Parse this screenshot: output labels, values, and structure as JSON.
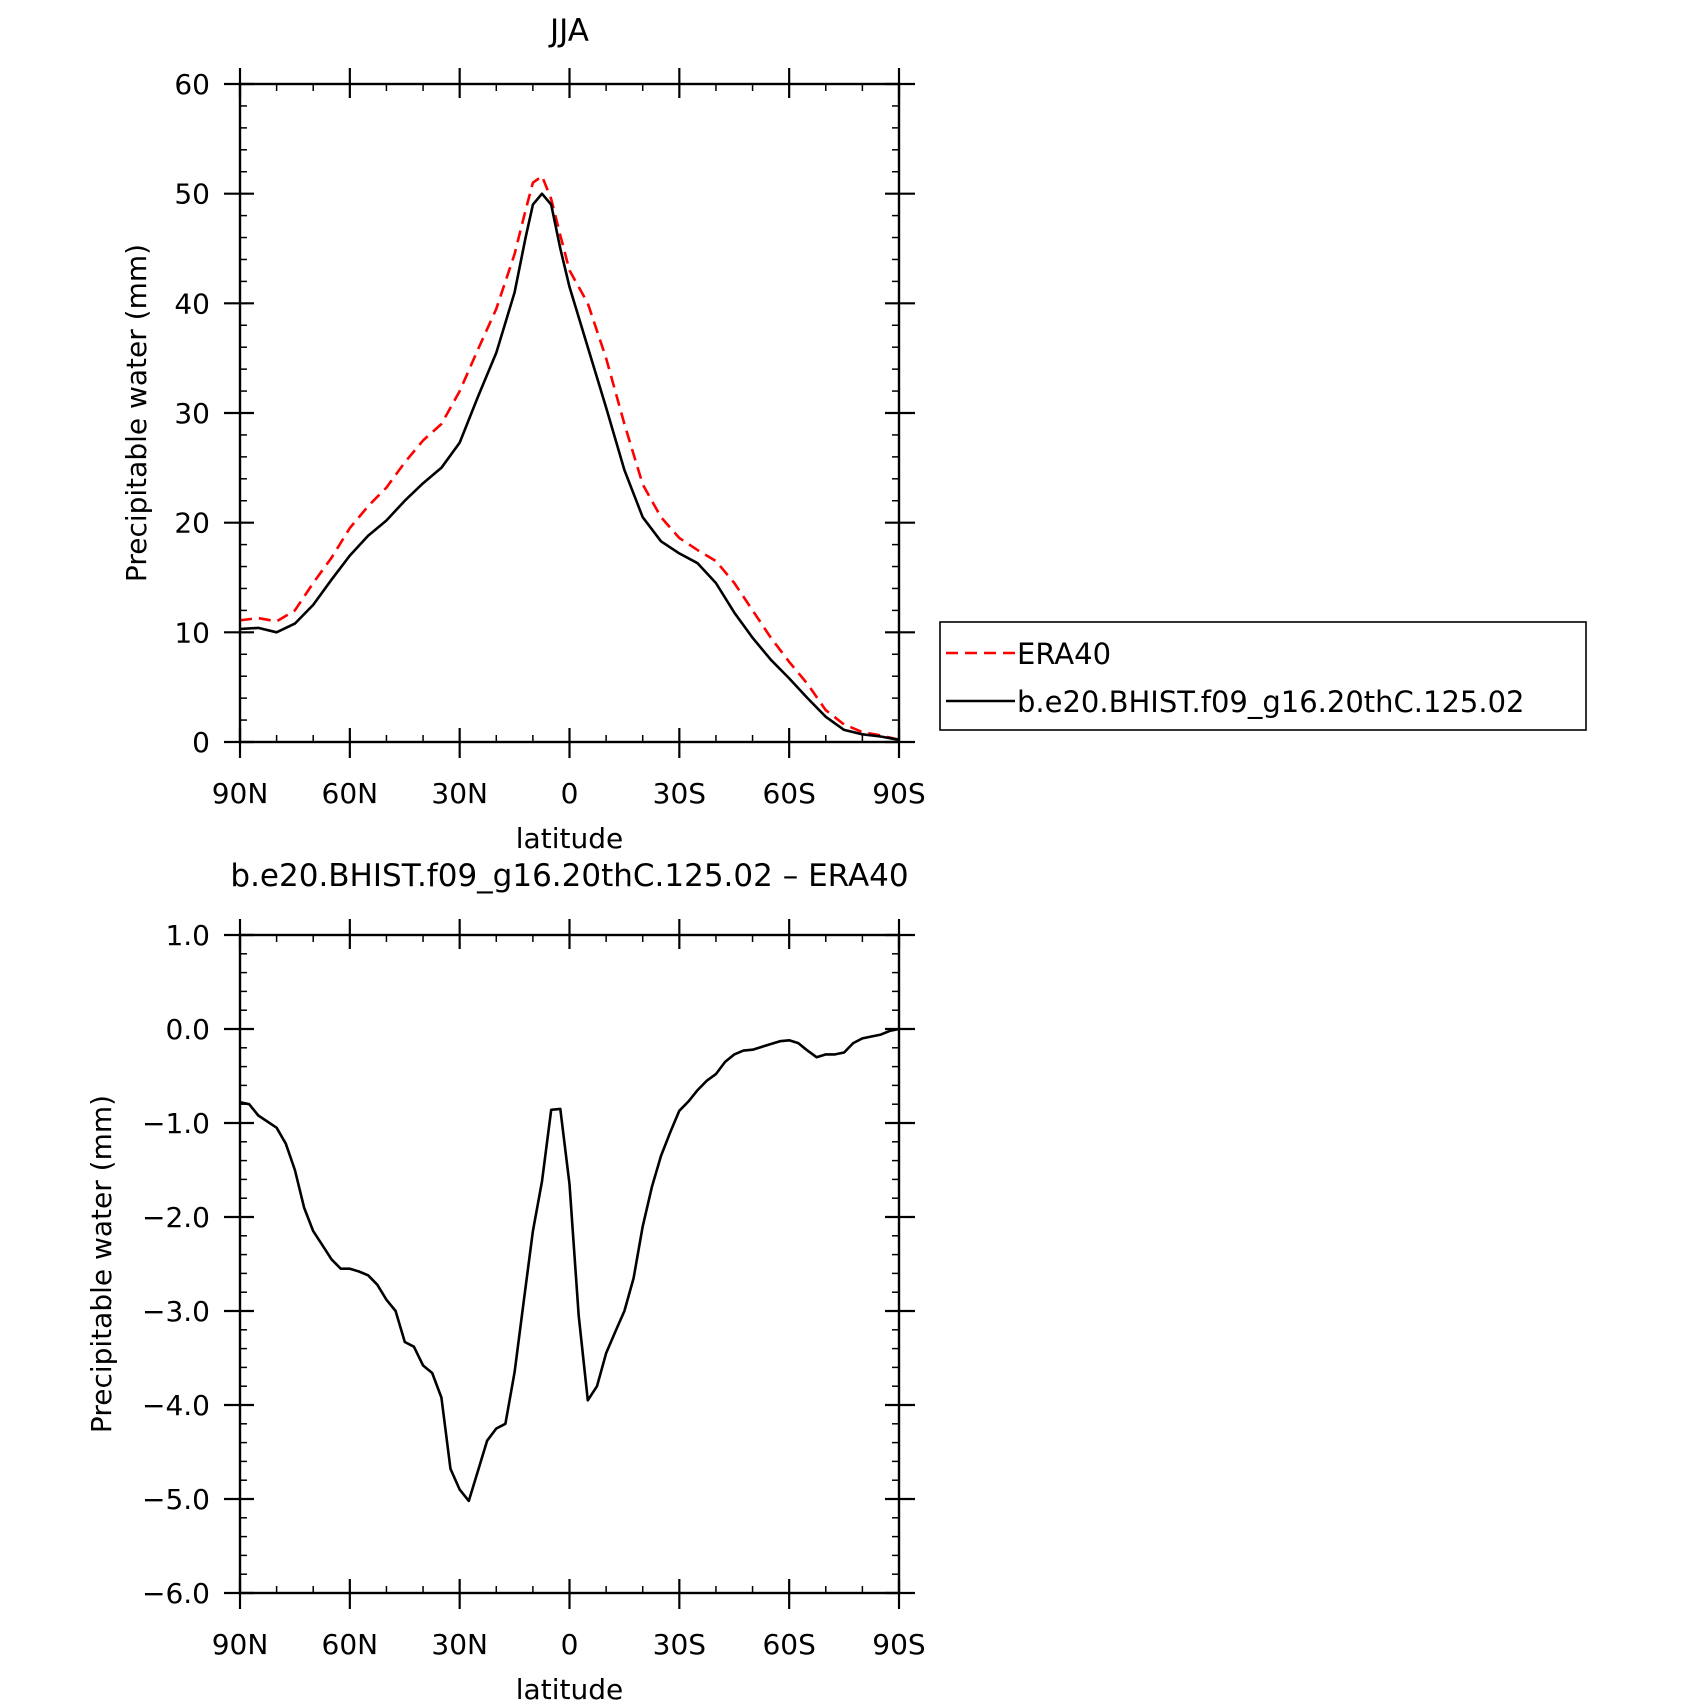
{
  "chart_data": [
    {
      "type": "line",
      "title": "JJA",
      "xlabel": "latitude",
      "ylabel": "Precipitable water (mm)",
      "xlim": [
        90,
        -90
      ],
      "ylim": [
        0,
        60
      ],
      "x_ticks": [
        90,
        60,
        30,
        0,
        -30,
        -60,
        -90
      ],
      "x_tick_labels": [
        "90N",
        "60N",
        "30N",
        "0",
        "30S",
        "60S",
        "90S"
      ],
      "y_ticks": [
        0,
        10,
        20,
        30,
        40,
        50,
        60
      ],
      "y_tick_labels": [
        "0",
        "10",
        "20",
        "30",
        "40",
        "50",
        "60"
      ],
      "grid": false,
      "legend": "right",
      "series": [
        {
          "name": "ERA40",
          "color": "#ff0000",
          "style": "dashed",
          "x": [
            90,
            85,
            80,
            75,
            70,
            65,
            60,
            55,
            50,
            45,
            40,
            35,
            30,
            25,
            20,
            15,
            12,
            10,
            7.5,
            5,
            2.5,
            0,
            -5,
            -10,
            -15,
            -20,
            -25,
            -30,
            -35,
            -40,
            -45,
            -50,
            -55,
            -60,
            -65,
            -70,
            -75,
            -80,
            -85,
            -90
          ],
          "y": [
            11.1,
            11.3,
            11.0,
            12.0,
            14.5,
            16.8,
            19.5,
            21.5,
            23.2,
            25.5,
            27.5,
            29.0,
            32.0,
            35.8,
            39.5,
            44.5,
            48.5,
            51.0,
            51.6,
            49.5,
            46.2,
            43.0,
            40.0,
            35.0,
            29.0,
            23.5,
            20.5,
            18.6,
            17.5,
            16.5,
            14.5,
            12.0,
            9.5,
            7.3,
            5.3,
            2.9,
            1.6,
            0.9,
            0.6,
            0.2
          ]
        },
        {
          "name": "b.e20.BHIST.f09_g16.20thC.125.02",
          "color": "#000000",
          "style": "solid",
          "x": [
            90,
            85,
            80,
            75,
            70,
            65,
            60,
            55,
            50,
            45,
            40,
            35,
            30,
            25,
            20,
            15,
            12,
            10,
            7.5,
            5,
            2.5,
            0,
            -5,
            -10,
            -15,
            -20,
            -25,
            -30,
            -35,
            -40,
            -45,
            -50,
            -55,
            -60,
            -65,
            -70,
            -75,
            -80,
            -85,
            -90
          ],
          "y": [
            10.3,
            10.4,
            10.0,
            10.8,
            12.5,
            14.8,
            17.0,
            18.8,
            20.2,
            22.0,
            23.6,
            25.0,
            27.3,
            31.5,
            35.5,
            41.0,
            46.0,
            49.0,
            50.0,
            49.0,
            45.0,
            41.5,
            36.0,
            30.5,
            24.8,
            20.5,
            18.3,
            17.2,
            16.3,
            14.5,
            11.8,
            9.5,
            7.5,
            5.8,
            4.0,
            2.3,
            1.1,
            0.7,
            0.5,
            0.2
          ]
        }
      ]
    },
    {
      "type": "line",
      "title": "b.e20.BHIST.f09_g16.20thC.125.02 – ERA40",
      "xlabel": "latitude",
      "ylabel": "Precipitable water (mm)",
      "xlim": [
        90,
        -90
      ],
      "ylim": [
        -6.0,
        1.0
      ],
      "x_ticks": [
        90,
        60,
        30,
        0,
        -30,
        -60,
        -90
      ],
      "x_tick_labels": [
        "90N",
        "60N",
        "30N",
        "0",
        "30S",
        "60S",
        "90S"
      ],
      "y_ticks": [
        1.0,
        0.0,
        -1.0,
        -2.0,
        -3.0,
        -4.0,
        -5.0,
        -6.0
      ],
      "y_tick_labels": [
        "1.0",
        "0.0",
        "−1.0",
        "−2.0",
        "−3.0",
        "−4.0",
        "−5.0",
        "−6.0"
      ],
      "grid": false,
      "series": [
        {
          "color": "#000000",
          "style": "solid",
          "x": [
            90,
            87.5,
            85,
            80,
            77.5,
            75,
            72.5,
            70,
            67.5,
            65,
            62.5,
            60,
            57.5,
            55,
            52.5,
            50,
            47.5,
            45,
            42.5,
            40,
            37.5,
            35,
            32.5,
            30,
            27.5,
            25,
            22.5,
            20,
            17.5,
            15,
            12.5,
            10,
            7.5,
            5,
            2.5,
            0,
            -2.5,
            -5,
            -7.5,
            -10,
            -12.5,
            -15,
            -17.5,
            -20,
            -22.5,
            -25,
            -27.5,
            -30,
            -32.5,
            -35,
            -37.5,
            -40,
            -42.5,
            -45,
            -47.5,
            -50,
            -55,
            -57.5,
            -60,
            -62.5,
            -65,
            -67.5,
            -70,
            -72.5,
            -75,
            -77.5,
            -80,
            -82.5,
            -85,
            -87.5,
            -90
          ],
          "y": [
            -0.78,
            -0.8,
            -0.92,
            -1.05,
            -1.22,
            -1.5,
            -1.9,
            -2.15,
            -2.3,
            -2.45,
            -2.55,
            -2.55,
            -2.58,
            -2.62,
            -2.72,
            -2.88,
            -3.0,
            -3.33,
            -3.38,
            -3.58,
            -3.66,
            -3.92,
            -4.68,
            -4.9,
            -5.02,
            -4.7,
            -4.38,
            -4.25,
            -4.2,
            -3.65,
            -2.9,
            -2.15,
            -1.62,
            -0.86,
            -0.85,
            -1.65,
            -3.05,
            -3.95,
            -3.8,
            -3.45,
            -3.22,
            -3.0,
            -2.65,
            -2.1,
            -1.68,
            -1.35,
            -1.1,
            -0.87,
            -0.77,
            -0.65,
            -0.55,
            -0.48,
            -0.35,
            -0.27,
            -0.23,
            -0.22,
            -0.16,
            -0.13,
            -0.12,
            -0.15,
            -0.23,
            -0.3,
            -0.27,
            -0.27,
            -0.25,
            -0.15,
            -0.1,
            -0.08,
            -0.06,
            -0.02,
            0.0
          ]
        }
      ]
    }
  ]
}
